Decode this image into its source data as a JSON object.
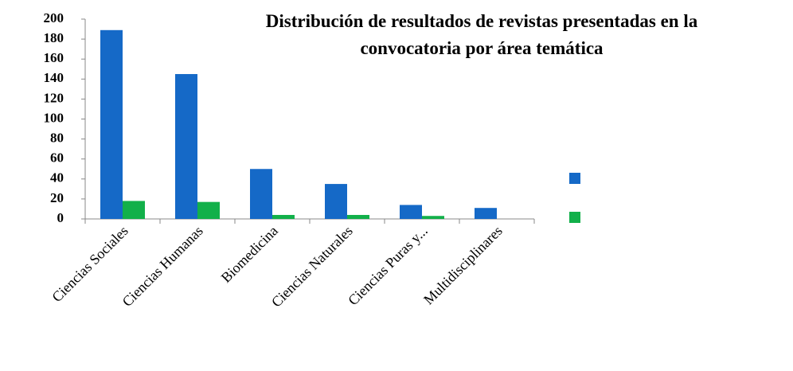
{
  "chart_data": {
    "type": "bar",
    "title_lines": [
      "Distribución de resultados de revistas presentadas en la",
      "convocatoria por área temática"
    ],
    "categories": [
      "Ciencias Sociales",
      "Ciencias Humanas",
      "Biomedicina",
      "Ciencias Naturales",
      "Ciencias Puras y...",
      "Multidisciplinares"
    ],
    "series": [
      {
        "color": "#1569c7",
        "values": [
          189,
          145,
          50,
          35,
          14,
          11
        ]
      },
      {
        "color": "#12b04a",
        "values": [
          18,
          17,
          4,
          4,
          3,
          0
        ]
      }
    ],
    "ylim": [
      0,
      200
    ],
    "yticks": [
      0,
      20,
      40,
      60,
      80,
      100,
      120,
      140,
      160,
      180,
      200
    ],
    "grid": false,
    "legend": "right"
  }
}
